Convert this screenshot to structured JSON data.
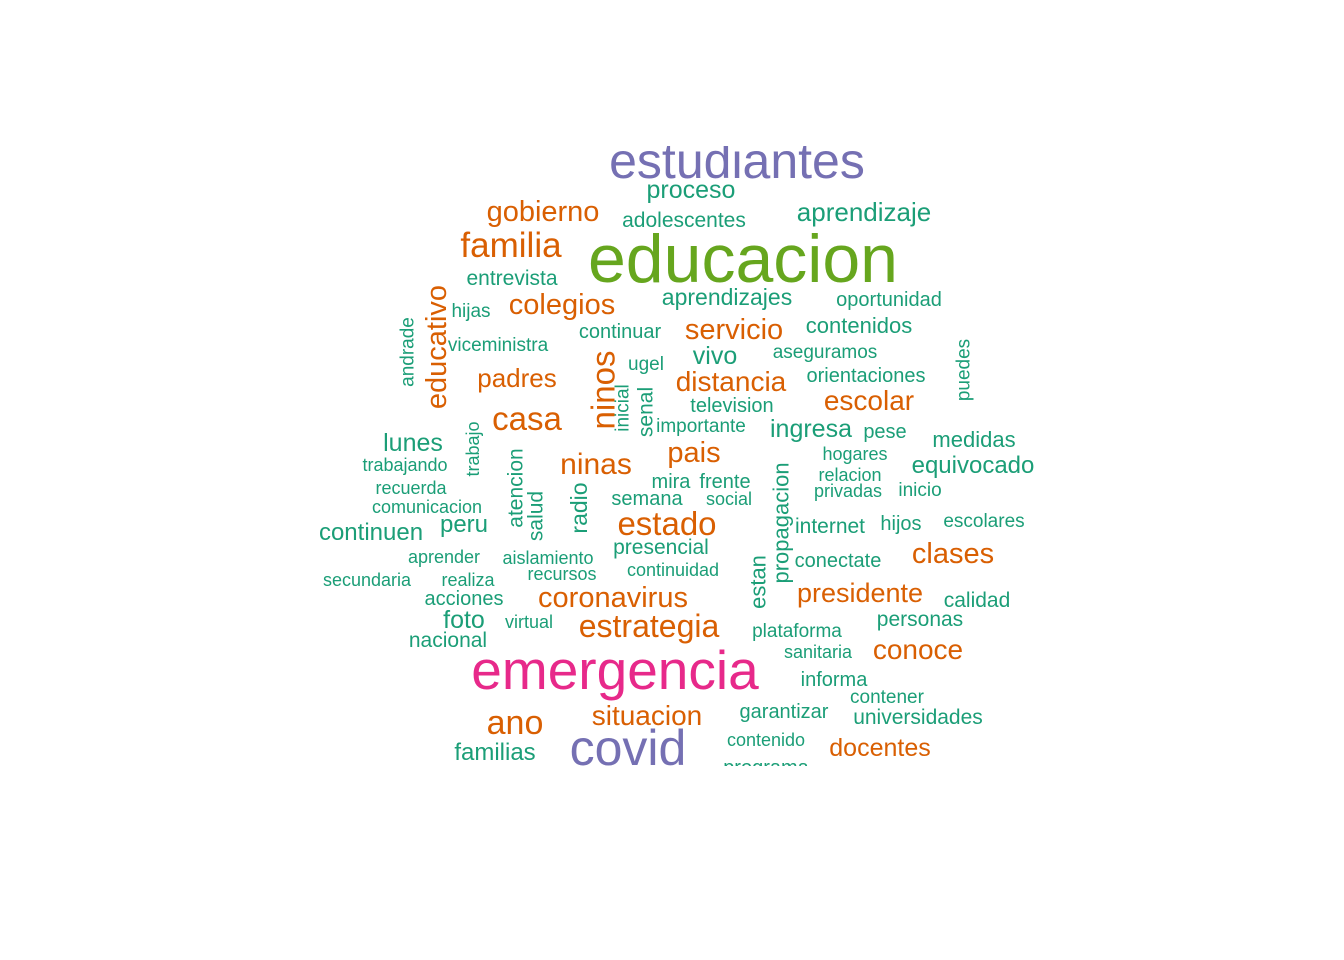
{
  "palette": {
    "teal": "#1b9e77",
    "orange": "#d95f02",
    "purple": "#7570b3",
    "pink": "#e7298a",
    "green": "#66a61e"
  },
  "words": [
    {
      "text": "estudiantes",
      "color": "purple"
    },
    {
      "text": "proceso",
      "color": "teal"
    },
    {
      "text": "gobierno",
      "color": "orange"
    },
    {
      "text": "adolescentes",
      "color": "teal"
    },
    {
      "text": "aprendizaje",
      "color": "teal"
    },
    {
      "text": "familia",
      "color": "orange"
    },
    {
      "text": "educacion",
      "color": "green"
    },
    {
      "text": "entrevista",
      "color": "teal"
    },
    {
      "text": "educativo",
      "color": "orange"
    },
    {
      "text": "hijas",
      "color": "teal"
    },
    {
      "text": "colegios",
      "color": "orange"
    },
    {
      "text": "aprendizajes",
      "color": "teal"
    },
    {
      "text": "oportunidad",
      "color": "teal"
    },
    {
      "text": "andrade",
      "color": "teal"
    },
    {
      "text": "continuar",
      "color": "teal"
    },
    {
      "text": "servicio",
      "color": "orange"
    },
    {
      "text": "contenidos",
      "color": "teal"
    },
    {
      "text": "viceministra",
      "color": "teal"
    },
    {
      "text": "ninos",
      "color": "orange"
    },
    {
      "text": "vivo",
      "color": "teal"
    },
    {
      "text": "aseguramos",
      "color": "teal"
    },
    {
      "text": "puedes",
      "color": "teal"
    },
    {
      "text": "ugel",
      "color": "teal"
    },
    {
      "text": "padres",
      "color": "orange"
    },
    {
      "text": "distancia",
      "color": "orange"
    },
    {
      "text": "orientaciones",
      "color": "teal"
    },
    {
      "text": "inicial",
      "color": "teal"
    },
    {
      "text": "senal",
      "color": "teal"
    },
    {
      "text": "television",
      "color": "teal"
    },
    {
      "text": "escolar",
      "color": "orange"
    },
    {
      "text": "casa",
      "color": "orange"
    },
    {
      "text": "trabajo",
      "color": "teal"
    },
    {
      "text": "importante",
      "color": "teal"
    },
    {
      "text": "ingresa",
      "color": "teal"
    },
    {
      "text": "pese",
      "color": "teal"
    },
    {
      "text": "lunes",
      "color": "teal"
    },
    {
      "text": "medidas",
      "color": "teal"
    },
    {
      "text": "pais",
      "color": "orange"
    },
    {
      "text": "hogares",
      "color": "teal"
    },
    {
      "text": "trabajando",
      "color": "teal"
    },
    {
      "text": "atencion",
      "color": "teal"
    },
    {
      "text": "ninas",
      "color": "orange"
    },
    {
      "text": "equivocado",
      "color": "teal"
    },
    {
      "text": "relacion",
      "color": "teal"
    },
    {
      "text": "mira",
      "color": "teal"
    },
    {
      "text": "frente",
      "color": "teal"
    },
    {
      "text": "recuerda",
      "color": "teal"
    },
    {
      "text": "privadas",
      "color": "teal"
    },
    {
      "text": "inicio",
      "color": "teal"
    },
    {
      "text": "radio",
      "color": "teal"
    },
    {
      "text": "semana",
      "color": "teal"
    },
    {
      "text": "social",
      "color": "teal"
    },
    {
      "text": "comunicacion",
      "color": "teal"
    },
    {
      "text": "salud",
      "color": "teal"
    },
    {
      "text": "propagacion",
      "color": "teal"
    },
    {
      "text": "peru",
      "color": "teal"
    },
    {
      "text": "estado",
      "color": "orange"
    },
    {
      "text": "internet",
      "color": "teal"
    },
    {
      "text": "hijos",
      "color": "teal"
    },
    {
      "text": "escolares",
      "color": "teal"
    },
    {
      "text": "continuen",
      "color": "teal"
    },
    {
      "text": "presencial",
      "color": "teal"
    },
    {
      "text": "clases",
      "color": "orange"
    },
    {
      "text": "aprender",
      "color": "teal"
    },
    {
      "text": "aislamiento",
      "color": "teal"
    },
    {
      "text": "conectate",
      "color": "teal"
    },
    {
      "text": "continuidad",
      "color": "teal"
    },
    {
      "text": "estan",
      "color": "teal"
    },
    {
      "text": "recursos",
      "color": "teal"
    },
    {
      "text": "secundaria",
      "color": "teal"
    },
    {
      "text": "realiza",
      "color": "teal"
    },
    {
      "text": "presidente",
      "color": "orange"
    },
    {
      "text": "coronavirus",
      "color": "orange"
    },
    {
      "text": "calidad",
      "color": "teal"
    },
    {
      "text": "acciones",
      "color": "teal"
    },
    {
      "text": "personas",
      "color": "teal"
    },
    {
      "text": "foto",
      "color": "teal"
    },
    {
      "text": "virtual",
      "color": "teal"
    },
    {
      "text": "estrategia",
      "color": "orange"
    },
    {
      "text": "plataforma",
      "color": "teal"
    },
    {
      "text": "nacional",
      "color": "teal"
    },
    {
      "text": "conoce",
      "color": "orange"
    },
    {
      "text": "sanitaria",
      "color": "teal"
    },
    {
      "text": "emergencia",
      "color": "pink"
    },
    {
      "text": "informa",
      "color": "teal"
    },
    {
      "text": "contener",
      "color": "teal"
    },
    {
      "text": "ano",
      "color": "orange"
    },
    {
      "text": "situacion",
      "color": "orange"
    },
    {
      "text": "garantizar",
      "color": "teal"
    },
    {
      "text": "universidades",
      "color": "teal"
    },
    {
      "text": "contenido",
      "color": "teal"
    },
    {
      "text": "docentes",
      "color": "orange"
    },
    {
      "text": "familias",
      "color": "teal"
    },
    {
      "text": "covid",
      "color": "purple"
    },
    {
      "text": "programa",
      "color": "teal"
    }
  ]
}
